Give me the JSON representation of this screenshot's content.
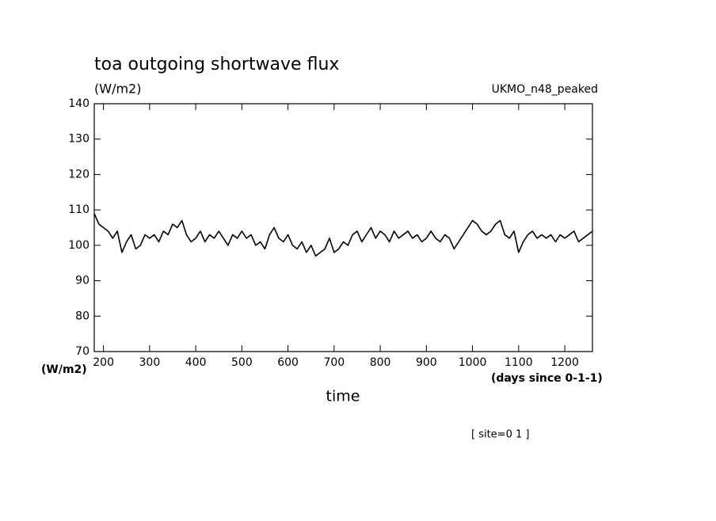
{
  "chart_data": {
    "type": "line",
    "title": "toa outgoing shortwave flux",
    "units": "(W/m2)",
    "model": "UKMO_n48_peaked",
    "ylabel": "(W/m2)",
    "xunits": "(days since 0-1-1)",
    "xlabel": "time",
    "annotation": "[ site=0 1 ]",
    "x": [
      180,
      190,
      200,
      210,
      220,
      230,
      240,
      250,
      260,
      270,
      280,
      290,
      300,
      310,
      320,
      330,
      340,
      350,
      360,
      370,
      380,
      390,
      400,
      410,
      420,
      430,
      440,
      450,
      460,
      470,
      480,
      490,
      500,
      510,
      520,
      530,
      540,
      550,
      560,
      570,
      580,
      590,
      600,
      610,
      620,
      630,
      640,
      650,
      660,
      670,
      680,
      690,
      700,
      710,
      720,
      730,
      740,
      750,
      760,
      770,
      780,
      790,
      800,
      810,
      820,
      830,
      840,
      850,
      860,
      870,
      880,
      890,
      900,
      910,
      920,
      930,
      940,
      950,
      960,
      970,
      980,
      990,
      1000,
      1010,
      1020,
      1030,
      1040,
      1050,
      1060,
      1070,
      1080,
      1090,
      1100,
      1110,
      1120,
      1130,
      1140,
      1150,
      1160,
      1170,
      1180,
      1190,
      1200,
      1210,
      1220,
      1230,
      1240,
      1250,
      1260
    ],
    "series": [
      {
        "color": "#000000",
        "values": [
          109,
          106,
          105,
          104,
          102,
          104,
          98,
          101,
          103,
          99,
          100,
          103,
          102,
          103,
          101,
          104,
          103,
          106,
          105,
          107,
          103,
          101,
          102,
          104,
          101,
          103,
          102,
          104,
          102,
          100,
          103,
          102,
          104,
          102,
          103,
          100,
          101,
          99,
          103,
          105,
          102,
          101,
          103,
          100,
          99,
          101,
          98,
          100,
          97,
          98,
          99,
          102,
          98,
          99,
          101,
          100,
          103,
          104,
          101,
          103,
          105,
          102,
          104,
          103,
          101,
          104,
          102,
          103,
          104,
          102,
          103,
          101,
          102,
          104,
          102,
          101,
          103,
          102,
          99,
          101,
          103,
          105,
          107,
          106,
          104,
          103,
          104,
          106,
          107,
          103,
          102,
          104,
          98,
          101,
          103,
          104,
          102,
          103,
          102,
          103,
          101,
          103,
          102,
          103,
          104,
          101,
          102,
          103,
          104
        ]
      }
    ],
    "xlim": [
      180,
      1260
    ],
    "ylim": [
      70,
      140
    ],
    "xticks": [
      200,
      300,
      400,
      500,
      600,
      700,
      800,
      900,
      1000,
      1100,
      1200
    ],
    "yticks": [
      70,
      80,
      90,
      100,
      110,
      120,
      130,
      140
    ],
    "grid": false
  }
}
